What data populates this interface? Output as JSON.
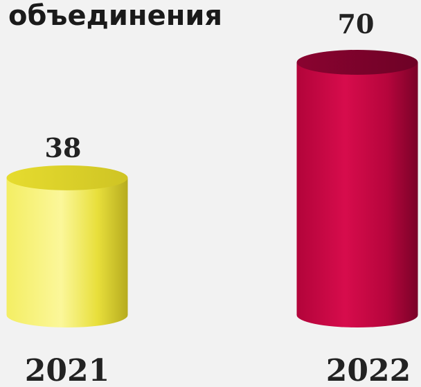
{
  "chart_data": {
    "type": "bar",
    "title": "объединения",
    "categories": [
      "2021",
      "2022"
    ],
    "values": [
      38,
      70
    ],
    "ylim": [
      0,
      70
    ],
    "grid": false,
    "legend": "none",
    "colors": {
      "2021": "#f0e84a",
      "2022": "#c0063f"
    },
    "data_labels": [
      "38",
      "70"
    ]
  }
}
